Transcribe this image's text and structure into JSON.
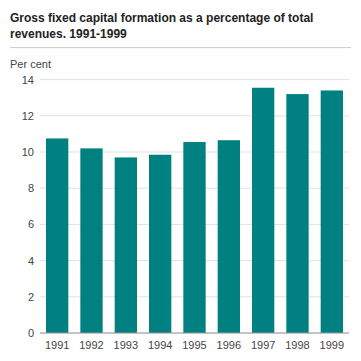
{
  "chart_data": {
    "type": "bar",
    "title": "Gross fixed capital formation as a percentage of total\nrevenues. 1991-1999",
    "ylabel": "Per cent",
    "categories": [
      "1991",
      "1992",
      "1993",
      "1994",
      "1995",
      "1996",
      "1997",
      "1998",
      "1999"
    ],
    "values": [
      10.75,
      10.2,
      9.7,
      9.85,
      10.55,
      10.65,
      13.55,
      13.2,
      13.4
    ],
    "color": "#008080",
    "ylim": [
      0,
      14
    ],
    "yticks": [
      0,
      2,
      4,
      6,
      8,
      10,
      12,
      14
    ],
    "grid": true
  }
}
